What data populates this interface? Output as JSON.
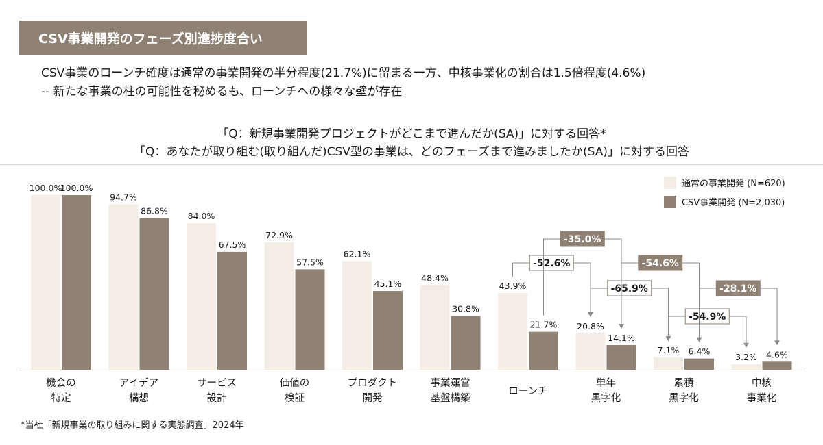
{
  "title": "CSV事業開発のフェーズ別進捗度合い",
  "headline": {
    "line1": "CSV事業のローンチ確度は通常の事業開発の半分程度(21.7%)に留まる一方、中核事業化の割合は1.5倍程度(4.6%)",
    "line2": "-- 新たな事業の柱の可能性を秘めるも、ローンチへの様々な壁が存在"
  },
  "questions": {
    "q1": "「Q：新規事業開発プロジェクトがどこまで進んだか(SA)」に対する回答*",
    "q2": "「Q：あなたが取り組む(取り組んだ)CSV型の事業は、どのフェーズまで進みましたか(SA)」に対する回答"
  },
  "footnote": "*当社「新規事業の取り組みに関する実態調査」2024年",
  "colors": {
    "title_bg": "#8f8274",
    "series_normal": "#f4ede5",
    "series_csv": "#8f8274",
    "text": "#1a1a1a",
    "connector": "#8a8a8a",
    "badge_dark": "#8f8274",
    "badge_light_border": "#8f8274"
  },
  "chart_data": {
    "type": "bar",
    "categories": [
      [
        "機会の",
        "特定"
      ],
      [
        "アイデア",
        "構想"
      ],
      [
        "サービス",
        "設計"
      ],
      [
        "価値の",
        "検証"
      ],
      [
        "プロダクト",
        "開発"
      ],
      [
        "事業運営",
        "基盤構築"
      ],
      [
        "ローンチ"
      ],
      [
        "単年",
        "黒字化"
      ],
      [
        "累積",
        "黒字化"
      ],
      [
        "中核",
        "事業化"
      ]
    ],
    "series": [
      {
        "name": "通常の事業開発 (N=620)",
        "values": [
          100.0,
          94.7,
          84.0,
          72.9,
          62.1,
          48.4,
          43.9,
          20.8,
          7.1,
          3.2
        ],
        "labels": [
          "100.0%",
          "94.7%",
          "84.0%",
          "72.9%",
          "62.1%",
          "48.4%",
          "43.9%",
          "20.8%",
          "7.1%",
          "3.2%"
        ]
      },
      {
        "name": "CSV事業開発 (N=2,030)",
        "values": [
          100.0,
          86.8,
          67.5,
          57.5,
          45.1,
          30.8,
          21.7,
          14.1,
          6.4,
          4.6
        ],
        "labels": [
          "100.0%",
          "86.8%",
          "67.5%",
          "57.5%",
          "45.1%",
          "30.8%",
          "21.7%",
          "14.1%",
          "6.4%",
          "4.6%"
        ]
      }
    ],
    "ylim": [
      0,
      100
    ],
    "legend_position": "top-right",
    "grid": false,
    "annotations": [
      {
        "label": "-52.6%",
        "style": "light",
        "series": 0,
        "from": 6,
        "to": 7
      },
      {
        "label": "-35.0%",
        "style": "dark",
        "series": 1,
        "from": 6,
        "to": 7
      },
      {
        "label": "-65.9%",
        "style": "light",
        "series": 0,
        "from": 7,
        "to": 8
      },
      {
        "label": "-54.6%",
        "style": "dark",
        "series": 1,
        "from": 7,
        "to": 8
      },
      {
        "label": "-54.9%",
        "style": "light",
        "series": 0,
        "from": 8,
        "to": 9
      },
      {
        "label": "-28.1%",
        "style": "dark",
        "series": 1,
        "from": 8,
        "to": 9
      }
    ]
  }
}
